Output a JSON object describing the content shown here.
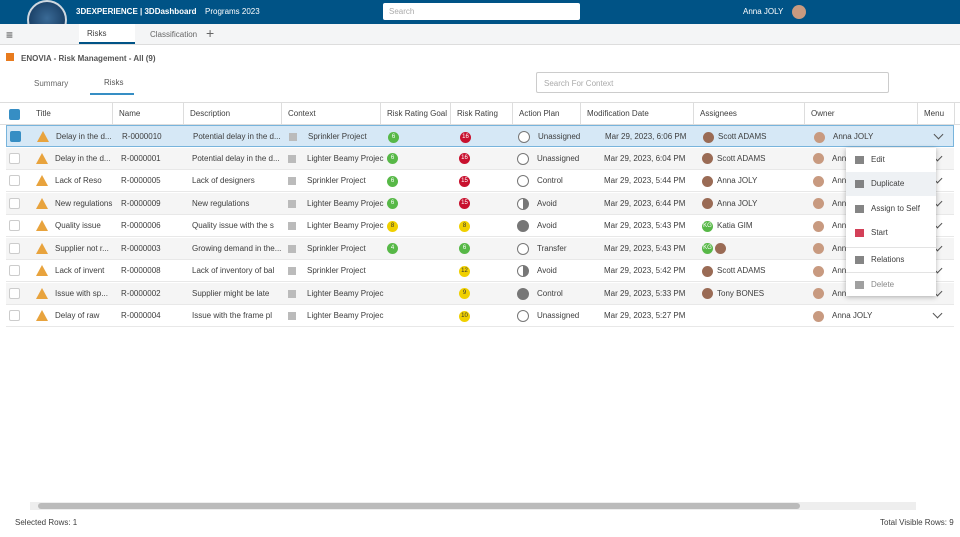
{
  "topbar": {
    "brand": "3DEXPERIENCE | 3DDashboard",
    "programs": "Programs 2023",
    "search_placeholder": "Search",
    "user": "Anna JOLY"
  },
  "tabs": [
    "Risks",
    "Classification"
  ],
  "app_title": "ENOVIA - Risk Management - All (9)",
  "view_tabs": [
    "Summary",
    "Risks"
  ],
  "context_search_placeholder": "Search For Context",
  "table": {
    "columns": [
      "Title",
      "Name",
      "Description",
      "Context",
      "Risk Rating Goal",
      "Risk Rating",
      "Action Plan",
      "Modification Date",
      "Assignees",
      "Owner",
      "Menu"
    ],
    "rows": [
      {
        "title": "Delay in the d...",
        "name": "R-0000010",
        "description": "Potential delay in the d...",
        "context": "Sprinkler Project",
        "goal": 6,
        "rating": 16,
        "action": "Unassigned",
        "action_icon": "empty",
        "modified": "Mar 29, 2023, 6:06 PM",
        "assignee": "Scott ADAMS",
        "assignee_initials": null,
        "owner": "Anna JOLY"
      },
      {
        "title": "Delay in the d...",
        "name": "R-0000001",
        "description": "Potential delay in the d...",
        "context": "Lighter Beamy Projec",
        "goal": 6,
        "rating": 16,
        "action": "Unassigned",
        "action_icon": "empty",
        "modified": "Mar 29, 2023, 6:04 PM",
        "assignee": "Scott ADAMS",
        "assignee_initials": null,
        "owner": "Anna JOLY"
      },
      {
        "title": "Lack of Reso",
        "name": "R-0000005",
        "description": "Lack of designers",
        "context": "Sprinkler Project",
        "goal": 6,
        "rating": 15,
        "action": "Control",
        "action_icon": "empty",
        "modified": "Mar 29, 2023, 5:44 PM",
        "assignee": "Anna JOLY",
        "assignee_initials": null,
        "owner": "Anna JOLY"
      },
      {
        "title": "New regulations",
        "name": "R-0000009",
        "description": "New regulations",
        "context": "Lighter Beamy Projec",
        "goal": 6,
        "rating": 15,
        "action": "Avoid",
        "action_icon": "half",
        "modified": "Mar 29, 2023, 6:44 PM",
        "assignee": "Anna JOLY",
        "assignee_initials": null,
        "owner": "Anna JOLY"
      },
      {
        "title": "Quality issue",
        "name": "R-0000006",
        "description": "Quality issue with the s",
        "context": "Lighter Beamy Projec",
        "goal": 8,
        "rating": 8,
        "action": "Avoid",
        "action_icon": "full",
        "modified": "Mar 29, 2023, 5:43 PM",
        "assignee": "Katia GIM",
        "assignee_initials": "KG",
        "owner": "Anna JOLY"
      },
      {
        "title": "Supplier not r...",
        "name": "R-0000003",
        "description": "Growing demand in the...",
        "context": "Sprinkler Project",
        "goal": 4,
        "rating": 6,
        "action": "Transfer",
        "action_icon": "empty",
        "modified": "Mar 29, 2023, 5:43 PM",
        "assignee": null,
        "assignee_initials": "KG",
        "owner": "Anna JOLY"
      },
      {
        "title": "Lack of invent",
        "name": "R-0000008",
        "description": "Lack of inventory of bal",
        "context": "Sprinkler Project",
        "goal": null,
        "rating": 12,
        "action": "Avoid",
        "action_icon": "half",
        "modified": "Mar 29, 2023, 5:42 PM",
        "assignee": "Scott ADAMS",
        "assignee_initials": null,
        "owner": "Anna JOLY"
      },
      {
        "title": "Issue with sp...",
        "name": "R-0000002",
        "description": "Supplier might be late",
        "context": "Lighter Beamy Projec",
        "goal": null,
        "rating": 9,
        "action": "Control",
        "action_icon": "full",
        "modified": "Mar 29, 2023, 5:33 PM",
        "assignee": "Tony BONES",
        "assignee_initials": null,
        "owner": "Anna JOLY"
      },
      {
        "title": "Delay of raw",
        "name": "R-0000004",
        "description": "Issue with the frame pl",
        "context": "Lighter Beamy Projec",
        "goal": null,
        "rating": 10,
        "action": "Unassigned",
        "action_icon": "empty",
        "modified": "Mar 29, 2023, 5:27 PM",
        "assignee": null,
        "assignee_initials": null,
        "owner": "Anna JOLY"
      }
    ]
  },
  "context_menu": [
    "Edit",
    "Duplicate",
    "Assign to Self",
    "Start",
    "Relations",
    "Delete"
  ],
  "footer": {
    "selected": "Selected Rows: 1",
    "total": "Total Visible Rows: 9"
  }
}
